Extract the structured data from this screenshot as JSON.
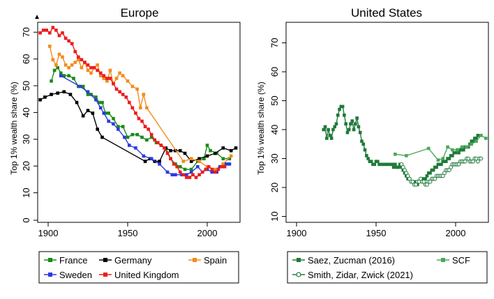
{
  "chart_data": [
    {
      "type": "line",
      "title": "Europe",
      "ylabel": "Top 1% wealth share (%)",
      "xlabel": "",
      "xlim": [
        1893,
        2020
      ],
      "ylim": [
        0,
        75
      ],
      "xticks": [
        "1900",
        "1950",
        "2000"
      ],
      "yticks": [
        "0",
        "10",
        "20",
        "30",
        "40",
        "50",
        "60",
        "70"
      ],
      "grid": false,
      "legend_position": "bottom",
      "legend": [
        "France",
        "Germany",
        "Spain",
        "Sweden",
        "United Kingdom"
      ],
      "series": [
        {
          "name": "France",
          "color": "#1a8a1a",
          "marker": "square",
          "x": [
            1902,
            1904,
            1906,
            1908,
            1910,
            1913,
            1916,
            1919,
            1922,
            1925,
            1927,
            1930,
            1932,
            1934,
            1936,
            1938,
            1941,
            1944,
            1947,
            1950,
            1953,
            1956,
            1959,
            1962,
            1965,
            1968,
            1971,
            1974,
            1977,
            1980,
            1983,
            1986,
            1990,
            1994,
            1998,
            2000,
            2002,
            2006,
            2010,
            2014
          ],
          "y": [
            52,
            56,
            57,
            55,
            54,
            54,
            53,
            50,
            50,
            47,
            47,
            46,
            44,
            44,
            40,
            40,
            38,
            35,
            35,
            31,
            32,
            32,
            31,
            30,
            31,
            29,
            28,
            27,
            23,
            21,
            20,
            19,
            19,
            22,
            23,
            28,
            26,
            25,
            23,
            23
          ]
        },
        {
          "name": "Germany",
          "color": "#000000",
          "marker": "square",
          "x": [
            1895,
            1898,
            1902,
            1906,
            1910,
            1914,
            1918,
            1922,
            1925,
            1928,
            1931,
            1934,
            1961,
            1964,
            1967,
            1970,
            1974,
            1977,
            1980,
            1983,
            1986,
            1990,
            1995,
            2000,
            2005,
            2010,
            2015,
            2018
          ],
          "y": [
            45,
            46,
            47,
            47.5,
            48,
            47,
            44,
            39,
            41,
            40,
            34,
            31,
            22,
            23,
            22,
            22,
            27,
            26,
            26,
            26,
            25,
            22,
            23,
            24,
            25,
            27,
            26,
            27
          ]
        },
        {
          "name": "Spain",
          "color": "#f28c1c",
          "marker": "square",
          "x": [
            1901,
            1903,
            1905,
            1907,
            1909,
            1911,
            1913,
            1915,
            1917,
            1919,
            1921,
            1923,
            1925,
            1927,
            1929,
            1931,
            1933,
            1935,
            1937,
            1939,
            1941,
            1943,
            1945,
            1947,
            1950,
            1953,
            1956,
            1958,
            1960,
            1962,
            1985,
            1990,
            1995,
            2000,
            2005,
            2010,
            2015
          ],
          "y": [
            65,
            60,
            58,
            62,
            61,
            58,
            57,
            58,
            59,
            60,
            57,
            59,
            56,
            55,
            57,
            58,
            54,
            53,
            52,
            56,
            51,
            53,
            55,
            54,
            52,
            50,
            49,
            42,
            47,
            42,
            22,
            23,
            22,
            20,
            19,
            21,
            24
          ]
        },
        {
          "name": "Sweden",
          "color": "#2a3ae0",
          "marker": "square",
          "x": [
            1908,
            1920,
            1925,
            1930,
            1933,
            1935,
            1938,
            1941,
            1944,
            1948,
            1951,
            1955,
            1960,
            1965,
            1970,
            1975,
            1978,
            1980,
            1984,
            1987,
            1990,
            1994,
            1997,
            2000,
            2003,
            2006,
            2008,
            2010,
            2012,
            2014
          ],
          "y": [
            54,
            50,
            48,
            45,
            42,
            40,
            37,
            36,
            34,
            31,
            28,
            27,
            24,
            23,
            21,
            18,
            17,
            17,
            17,
            17,
            18,
            20,
            18,
            19,
            18,
            18,
            20,
            20,
            21,
            21
          ]
        },
        {
          "name": "United Kingdom",
          "color": "#ee1c1c",
          "marker": "square",
          "x": [
            1895,
            1897,
            1899,
            1901,
            1903,
            1905,
            1907,
            1909,
            1911,
            1913,
            1915,
            1917,
            1919,
            1921,
            1923,
            1925,
            1927,
            1929,
            1931,
            1933,
            1935,
            1937,
            1939,
            1941,
            1943,
            1945,
            1947,
            1949,
            1951,
            1953,
            1955,
            1957,
            1959,
            1961,
            1963,
            1965,
            1967,
            1969,
            1971,
            1973,
            1975,
            1977,
            1979,
            1981,
            1983,
            1985,
            1987,
            1989,
            1991,
            1993,
            1995,
            1997,
            1999,
            2001,
            2003,
            2005,
            2007,
            2009,
            2011
          ],
          "y": [
            70,
            71,
            71,
            70,
            72,
            71,
            69,
            70,
            68,
            67,
            66,
            63,
            61,
            60,
            59,
            58,
            57,
            57,
            56,
            55,
            54,
            53,
            53,
            51,
            49,
            48,
            47,
            46,
            44,
            42,
            40,
            38,
            37,
            35,
            34,
            32,
            30,
            29,
            28,
            27,
            25,
            23,
            21,
            20,
            18,
            17,
            16,
            16,
            17,
            16,
            17,
            18,
            19,
            20,
            19,
            18,
            19,
            20,
            20
          ]
        },
        {
          "name": "",
          "color": "#000000",
          "marker": "triangle",
          "x": [
            1893
          ],
          "y": [
            76
          ]
        }
      ]
    },
    {
      "type": "line",
      "title": "United States",
      "ylabel": "Top 1% wealth share (%)",
      "xlabel": "",
      "xlim": [
        1893,
        2020
      ],
      "ylim": [
        10,
        75
      ],
      "xticks": [
        "1900",
        "1950",
        "2000"
      ],
      "yticks": [
        "10",
        "20",
        "30",
        "40",
        "50",
        "60",
        "70"
      ],
      "grid": false,
      "legend_position": "bottom",
      "legend": [
        "Saez, Zucman (2016)",
        "SCF",
        "Smith, Zidar, Zwick (2021)"
      ],
      "series": [
        {
          "name": "Saez, Zucman (2016)",
          "color": "#1f7a3a",
          "marker": "square",
          "x": [
            1917,
            1918,
            1919,
            1920,
            1921,
            1922,
            1923,
            1924,
            1925,
            1926,
            1927,
            1928,
            1929,
            1930,
            1931,
            1932,
            1933,
            1934,
            1935,
            1936,
            1937,
            1938,
            1939,
            1940,
            1941,
            1942,
            1943,
            1944,
            1945,
            1946,
            1947,
            1948,
            1949,
            1950,
            1951,
            1952,
            1953,
            1954,
            1955,
            1956,
            1957,
            1958,
            1959,
            1960,
            1961,
            1962,
            1963,
            1964,
            1965,
            1966,
            1967,
            1968,
            1969,
            1970,
            1971,
            1972,
            1973,
            1974,
            1975,
            1976,
            1977,
            1978,
            1979,
            1980,
            1981,
            1982,
            1983,
            1984,
            1985,
            1986,
            1987,
            1988,
            1989,
            1990,
            1991,
            1992,
            1993,
            1994,
            1995,
            1996,
            1997,
            1998,
            1999,
            2000,
            2001,
            2002,
            2003,
            2004,
            2005,
            2006,
            2007,
            2008,
            2009,
            2010,
            2011,
            2012,
            2013,
            2014
          ],
          "y": [
            40,
            41,
            37,
            40,
            38,
            37,
            40,
            41,
            42,
            45,
            47,
            48,
            48,
            45,
            42,
            39,
            40,
            42,
            43,
            40,
            42,
            44,
            41,
            39,
            36,
            35,
            33,
            31,
            30,
            29,
            29,
            28,
            28,
            29,
            29,
            28,
            28,
            28,
            28,
            28,
            28,
            28,
            28,
            28,
            27,
            28,
            27,
            27,
            28,
            27,
            26,
            25,
            24,
            23,
            23,
            22,
            22,
            22,
            21,
            21,
            22,
            22,
            23,
            23,
            23,
            24,
            25,
            25,
            26,
            26,
            27,
            27,
            28,
            28,
            28,
            29,
            29,
            29,
            30,
            30,
            31,
            31,
            32,
            32,
            33,
            32,
            33,
            33,
            33,
            34,
            34,
            34,
            35,
            36,
            36,
            37,
            37,
            38
          ]
        },
        {
          "name": "SCF",
          "color": "#4aa85a",
          "marker": "square",
          "x": [
            1962,
            1969,
            1983,
            1989,
            1992,
            1995,
            1998,
            2001,
            2004,
            2007,
            2010,
            2013,
            2016,
            2019
          ],
          "y": [
            31.5,
            31,
            33.5,
            29.5,
            30,
            34,
            33,
            33,
            34,
            34,
            35,
            36,
            38,
            37
          ]
        },
        {
          "name": "Smith, Zidar, Zwick (2021)",
          "color": "#1f7a3a",
          "marker": "hollow-circle",
          "x": [
            1966,
            1967,
            1968,
            1969,
            1970,
            1971,
            1972,
            1973,
            1974,
            1975,
            1976,
            1977,
            1978,
            1979,
            1980,
            1981,
            1982,
            1983,
            1984,
            1985,
            1986,
            1987,
            1988,
            1989,
            1990,
            1991,
            1992,
            1993,
            1994,
            1995,
            1996,
            1997,
            1998,
            1999,
            2000,
            2001,
            2002,
            2003,
            2004,
            2005,
            2006,
            2007,
            2008,
            2009,
            2010,
            2011,
            2012,
            2013,
            2014,
            2015,
            2016
          ],
          "y": [
            28,
            27,
            26,
            25,
            24,
            23,
            22,
            22,
            21,
            21,
            22,
            22,
            23,
            22,
            22,
            21,
            21,
            22,
            22,
            23,
            23,
            23,
            24,
            24,
            24,
            24,
            24,
            25,
            26,
            26,
            26,
            27,
            28,
            28,
            28,
            28,
            28,
            29,
            29,
            29,
            29,
            30,
            30,
            29,
            29,
            29,
            30,
            30,
            29,
            30,
            30
          ]
        }
      ]
    }
  ]
}
